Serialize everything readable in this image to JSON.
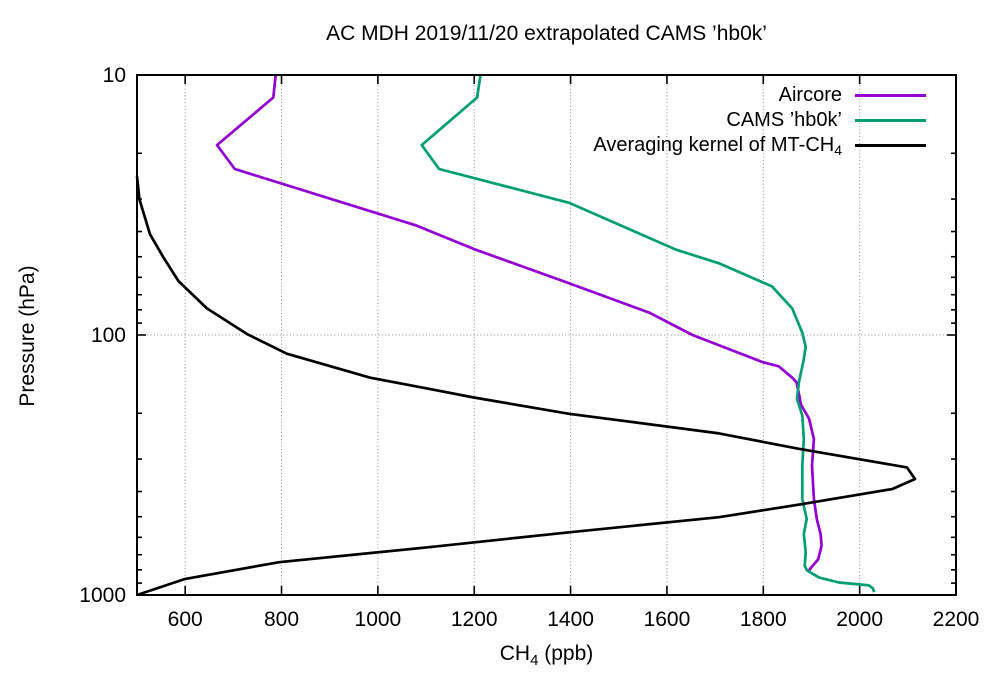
{
  "chart": {
    "title": "AC MDH 2019/11/20 extrapolated CAMS ’hb0k’",
    "ylabel": "Pressure (hPa)",
    "xlabel_parts": {
      "pre": "CH",
      "sub": "4",
      "post": " (ppb)"
    }
  },
  "legend": {
    "items": [
      {
        "label": {
          "pre": "Aircore",
          "sub": "",
          "post": ""
        }
      },
      {
        "label": {
          "pre": "CAMS ’hb0k’",
          "sub": "",
          "post": ""
        }
      },
      {
        "label": {
          "pre": "Averaging kernel of MT-CH",
          "sub": "4",
          "post": ""
        }
      }
    ]
  },
  "chart_data": {
    "type": "line",
    "title": "AC MDH 2019/11/20 extrapolated CAMS ’hb0k’",
    "xlabel": "CH4 (ppb)",
    "ylabel": "Pressure (hPa)",
    "grid": true,
    "legend_position": "top-right-inside",
    "x_axis": {
      "min": 500,
      "max": 2200,
      "major_ticks": [
        600,
        800,
        1000,
        1200,
        1400,
        1600,
        1800,
        2000,
        2200
      ]
    },
    "y_axis": {
      "scale": "log",
      "inverted": true,
      "min": 10,
      "max": 1000,
      "major_ticks": [
        10,
        100,
        1000
      ],
      "minor_ticks": [
        20,
        30,
        40,
        50,
        60,
        70,
        80,
        90,
        200,
        300,
        400,
        500,
        600,
        700,
        800,
        900
      ]
    },
    "series": [
      {
        "name": "Aircore",
        "color": "#9400d3",
        "points": [
          [
            788,
            10
          ],
          [
            783,
            12.2
          ],
          [
            666,
            18.6
          ],
          [
            703,
            23
          ],
          [
            1081,
            38
          ],
          [
            1203,
            47
          ],
          [
            1384,
            62
          ],
          [
            1563,
            82
          ],
          [
            1653,
            100
          ],
          [
            1798,
            127
          ],
          [
            1832,
            132
          ],
          [
            1860,
            146
          ],
          [
            1869,
            152
          ],
          [
            1875,
            172
          ],
          [
            1878,
            185
          ],
          [
            1895,
            210
          ],
          [
            1905,
            251
          ],
          [
            1901,
            318
          ],
          [
            1905,
            427
          ],
          [
            1911,
            510
          ],
          [
            1919,
            582
          ],
          [
            1921,
            646
          ],
          [
            1914,
            728
          ],
          [
            1897,
            794
          ],
          [
            1894,
            812
          ]
        ]
      },
      {
        "name": "CAMS ’hb0k’",
        "color": "#009e73",
        "points": [
          [
            1213,
            10
          ],
          [
            1206,
            12.2
          ],
          [
            1091,
            18.6
          ],
          [
            1127,
            23
          ],
          [
            1397,
            31
          ],
          [
            1619,
            47
          ],
          [
            1708,
            53
          ],
          [
            1818,
            65
          ],
          [
            1860,
            79
          ],
          [
            1881,
            98
          ],
          [
            1888,
            111
          ],
          [
            1884,
            124
          ],
          [
            1874,
            152
          ],
          [
            1870,
            176
          ],
          [
            1881,
            204
          ],
          [
            1884,
            251
          ],
          [
            1881,
            318
          ],
          [
            1881,
            427
          ],
          [
            1890,
            510
          ],
          [
            1884,
            582
          ],
          [
            1888,
            685
          ],
          [
            1886,
            773
          ],
          [
            1891,
            805
          ],
          [
            1916,
            857
          ],
          [
            1957,
            895
          ],
          [
            1998,
            910
          ],
          [
            2019,
            918
          ],
          [
            2028,
            945
          ],
          [
            2030,
            975
          ]
        ]
      },
      {
        "name": "Averaging kernel of MT-CH4",
        "color": "#000000",
        "points": [
          [
            500,
            24.5
          ],
          [
            505,
            30
          ],
          [
            527,
            41
          ],
          [
            554,
            50
          ],
          [
            586,
            62
          ],
          [
            645,
            79
          ],
          [
            728,
            99
          ],
          [
            811,
            118
          ],
          [
            984,
            146
          ],
          [
            1106,
            161
          ],
          [
            1199,
            174
          ],
          [
            1397,
            201
          ],
          [
            1708,
            239
          ],
          [
            1874,
            274
          ],
          [
            2098,
            323
          ],
          [
            2115,
            358
          ],
          [
            2068,
            391
          ],
          [
            1881,
            447
          ],
          [
            1708,
            502
          ],
          [
            1397,
            574
          ],
          [
            1106,
            655
          ],
          [
            795,
            748
          ],
          [
            600,
            867
          ],
          [
            500,
            1000
          ]
        ]
      }
    ]
  }
}
